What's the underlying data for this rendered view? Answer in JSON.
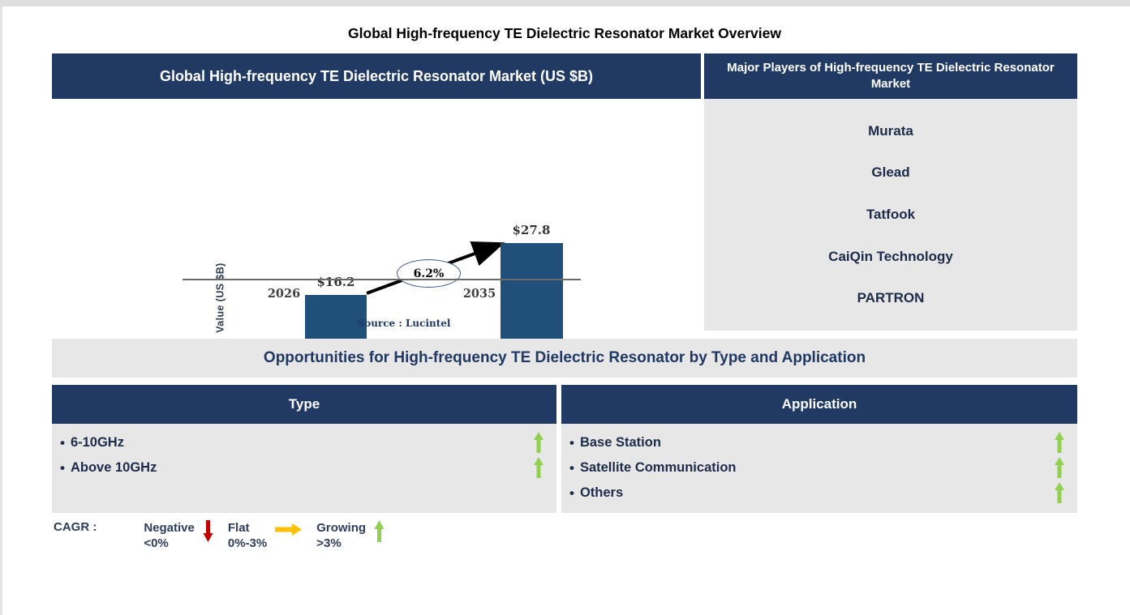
{
  "page_title": "Global High-frequency TE Dielectric Resonator Market Overview",
  "chart_panel": {
    "header": "Global High-frequency TE Dielectric Resonator Market (US $B)",
    "source": "Source : Lucintel"
  },
  "chart_data": {
    "type": "bar",
    "title": "Global High-frequency TE Dielectric Resonator Market (US $B)",
    "categories": [
      "2026",
      "2035"
    ],
    "values": [
      16.2,
      27.8
    ],
    "value_labels": [
      "$16.2",
      "$27.8"
    ],
    "ylabel": "Value (US $B)",
    "xlabel": "",
    "cagr_annotation": "6.2%",
    "bar_color": "#20507a",
    "ylim": [
      0,
      30
    ],
    "grid": "off",
    "source": "Source : Lucintel"
  },
  "major_players": {
    "header": "Major Players of High-frequency TE Dielectric Resonator Market",
    "companies": [
      "Murata",
      "Glead",
      "Tatfook",
      "CaiQin Technology",
      "PARTRON"
    ]
  },
  "opportunities": {
    "title": "Opportunities for High-frequency TE Dielectric Resonator by Type and Application",
    "type_table": {
      "header": "Type",
      "items": [
        {
          "label": "6-10GHz",
          "trend": "growing"
        },
        {
          "label": "Above 10GHz",
          "trend": "growing"
        }
      ]
    },
    "application_table": {
      "header": "Application",
      "items": [
        {
          "label": "Base Station",
          "trend": "growing"
        },
        {
          "label": "Satellite Communication",
          "trend": "growing"
        },
        {
          "label": "Others",
          "trend": "growing"
        }
      ]
    }
  },
  "legend": {
    "prefix": "CAGR :",
    "items": [
      {
        "label": "Negative",
        "range": "<0%",
        "direction": "down",
        "color": "#c00000"
      },
      {
        "label": "Flat",
        "range": "0%-3%",
        "direction": "right",
        "color": "#ffc000"
      },
      {
        "label": "Growing",
        "range": ">3%",
        "direction": "up",
        "color": "#92d050"
      }
    ]
  },
  "glyphs": {
    "bullet": "•"
  },
  "colors": {
    "header_navy": "#213a63",
    "panel_gray": "#e7e7e7",
    "bar_blue": "#20507a",
    "growth_green": "#92d050",
    "decline_red": "#c00000",
    "flat_orange": "#ffc000",
    "text_navy": "#1f3864"
  }
}
